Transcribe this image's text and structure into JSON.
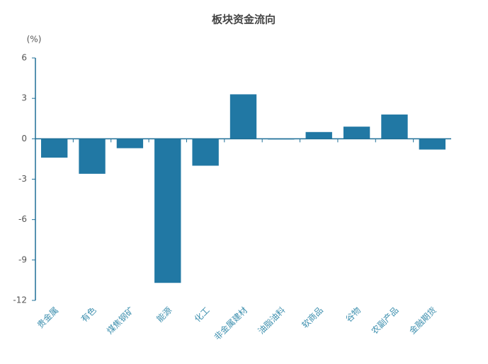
{
  "chart_data": {
    "type": "bar",
    "title": "板块资金流向",
    "y_label": "(%)",
    "categories": [
      "贵金属",
      "有色",
      "煤焦钢矿",
      "能源",
      "化工",
      "非金属建材",
      "油脂油料",
      "软商品",
      "谷物",
      "农副产品",
      "金融期货"
    ],
    "values": [
      -1.4,
      -2.6,
      -0.7,
      -10.7,
      -2.0,
      3.3,
      -0.05,
      0.5,
      0.9,
      1.8,
      -0.8
    ],
    "color": "#2178a4",
    "ylim": [
      -12,
      6
    ],
    "yticks": [
      6,
      3,
      0,
      -3,
      -6,
      -9,
      -12
    ],
    "grid": false
  }
}
